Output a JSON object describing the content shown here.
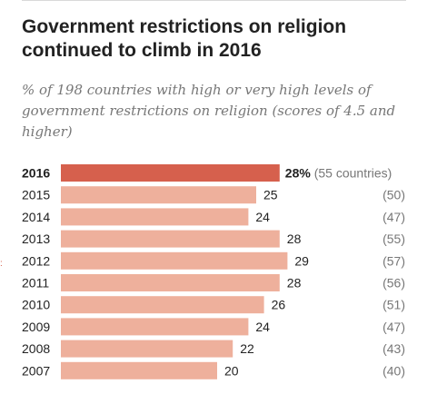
{
  "chart_data": {
    "type": "bar",
    "title": "Government restrictions on religion continued to climb in 2016",
    "subtitle": "% of 198 countries with high or very high levels of government restrictions on religion (scores of 4.5 and higher)",
    "categories": [
      "2016",
      "2015",
      "2014",
      "2013",
      "2012",
      "2011",
      "2010",
      "2009",
      "2008",
      "2007"
    ],
    "values": [
      28,
      25,
      24,
      28,
      29,
      28,
      26,
      24,
      22,
      20
    ],
    "value_labels": [
      "28%",
      "25",
      "24",
      "28",
      "29",
      "28",
      "26",
      "24",
      "22",
      "20"
    ],
    "counts": [
      "(55 countries)",
      "(50)",
      "(47)",
      "(55)",
      "(57)",
      "(56)",
      "(51)",
      "(47)",
      "(43)",
      "(40)"
    ],
    "highlight_index": 0,
    "orientation": "horizontal",
    "colors": {
      "highlight": "#d6604d",
      "bar": "#eeb09c"
    }
  }
}
